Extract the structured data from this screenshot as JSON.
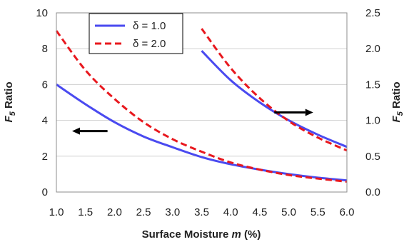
{
  "chart_data": {
    "type": "line",
    "title": "",
    "xlabel": "Surface Moisture m (%)",
    "xlabel_parts": {
      "prefix": "Surface Moisture ",
      "var": "m",
      "suffix": " (%)"
    },
    "ylabel_left": "F5 Ratio",
    "ylabel_right": "F5 Ratio",
    "ylabel_parts": {
      "base": "F",
      "sub": "5",
      "rest": " Ratio"
    },
    "xlim": [
      1.0,
      6.0
    ],
    "ylim_left": [
      0,
      10
    ],
    "ylim_right": [
      0.0,
      2.5
    ],
    "x_ticks": [
      "1.0",
      "1.5",
      "2.0",
      "2.5",
      "3.0",
      "3.5",
      "4.0",
      "4.5",
      "5.0",
      "5.5",
      "6.0"
    ],
    "y_ticks_left": [
      "0",
      "2",
      "4",
      "6",
      "8",
      "10"
    ],
    "y_ticks_right": [
      "0.0",
      "0.5",
      "1.0",
      "1.5",
      "2.0",
      "2.5"
    ],
    "grid": "horizontal",
    "legend_position": "top-left",
    "series": [
      {
        "name": "δ = 1.0",
        "axis": "left",
        "color": "#4a4af0",
        "style": "solid",
        "x": [
          1.0,
          1.5,
          2.0,
          2.5,
          3.0,
          3.5,
          4.0,
          4.5,
          5.0,
          5.5,
          6.0
        ],
        "y": [
          6.0,
          4.9,
          3.9,
          3.1,
          2.5,
          1.95,
          1.55,
          1.25,
          1.0,
          0.8,
          0.65
        ]
      },
      {
        "name": "δ = 2.0",
        "axis": "left",
        "color": "#e8181e",
        "style": "dashed",
        "x": [
          1.0,
          1.5,
          2.0,
          2.5,
          3.0,
          3.5,
          4.0,
          4.5,
          5.0,
          5.5,
          6.0
        ],
        "y": [
          9.0,
          6.8,
          5.2,
          3.9,
          2.95,
          2.25,
          1.65,
          1.25,
          0.95,
          0.75,
          0.58
        ]
      },
      {
        "name": "δ = 1.0",
        "axis": "right",
        "color": "#4a4af0",
        "style": "solid",
        "x": [
          3.5,
          4.0,
          4.5,
          5.0,
          5.5,
          6.0
        ],
        "y": [
          1.97,
          1.56,
          1.25,
          1.0,
          0.8,
          0.63
        ]
      },
      {
        "name": "δ = 2.0",
        "axis": "right",
        "color": "#e8181e",
        "style": "dashed",
        "x": [
          3.5,
          4.0,
          4.5,
          5.0,
          5.5,
          6.0
        ],
        "y": [
          2.28,
          1.73,
          1.31,
          0.99,
          0.76,
          0.58
        ]
      }
    ],
    "annotations": [
      {
        "type": "arrow",
        "direction": "left",
        "target_axis": "left",
        "x_from": 1.88,
        "x_to": 1.27,
        "y": 3.4
      },
      {
        "type": "arrow",
        "direction": "right",
        "target_axis": "right",
        "x_from": 4.75,
        "x_to": 5.42,
        "y": 1.11
      }
    ]
  }
}
